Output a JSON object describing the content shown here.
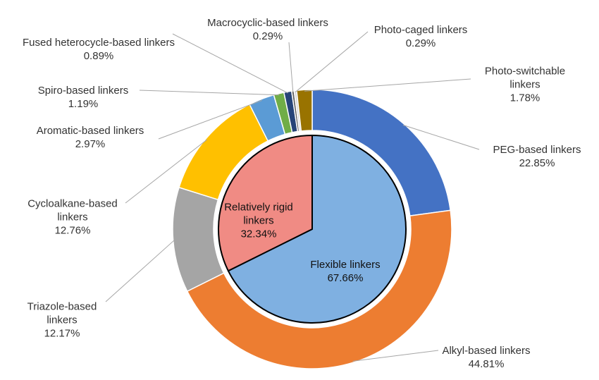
{
  "chart_data": {
    "type": "sunburst",
    "rings": [
      {
        "categories": [
          "Flexible linkers",
          "Relatively rigid linkers"
        ],
        "values": [
          67.66,
          32.34
        ],
        "value_labels": [
          "67.66%",
          "32.34%"
        ],
        "colors": [
          "#7fb0e1",
          "#f08b84"
        ]
      },
      {
        "categories": [
          "PEG-based linkers",
          "Alkyl-based linkers",
          "Triazole-based linkers",
          "Cycloalkane-based linkers",
          "Aromatic-based linkers",
          "Spiro-based linkers",
          "Fused heterocycle-based linkers",
          "Macrocyclic-based linkers",
          "Photo-caged linkers",
          "Photo-switchable linkers"
        ],
        "values": [
          22.85,
          44.81,
          12.17,
          12.76,
          2.97,
          1.19,
          0.89,
          0.29,
          0.29,
          1.78
        ],
        "value_labels": [
          "22.85%",
          "44.81%",
          "12.17%",
          "12.76%",
          "2.97%",
          "1.19%",
          "0.89%",
          "0.29%",
          "0.29%",
          "1.78%"
        ],
        "colors": [
          "#4472c4",
          "#ed7d31",
          "#a5a5a5",
          "#ffc000",
          "#5b9bd5",
          "#70ad47",
          "#264478",
          "#636363",
          "#d9d9d9",
          "#997300"
        ]
      }
    ]
  }
}
